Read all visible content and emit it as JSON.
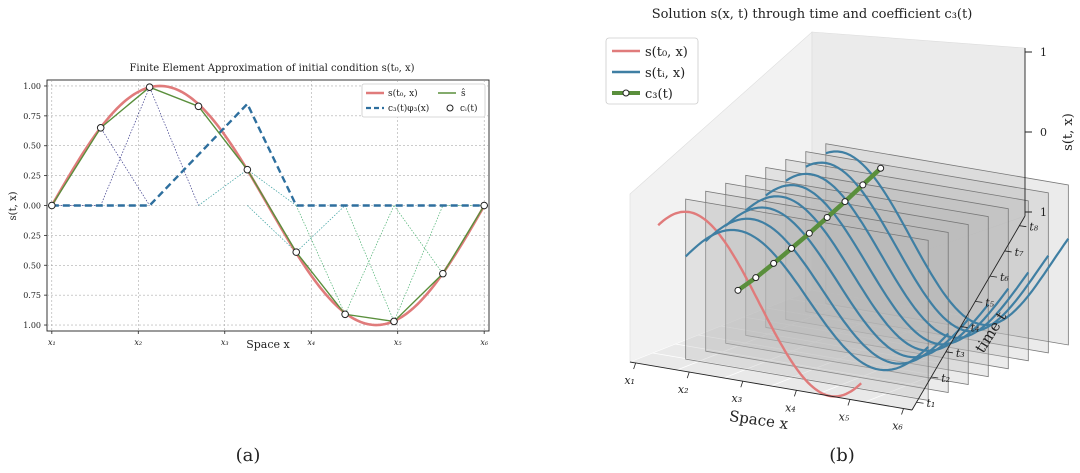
{
  "panel_a": {
    "label": "(a)",
    "title": "Finite Element Approximation of initial condition s(t₀, x)",
    "xlabel": "Space x",
    "ylabel": "s(t, x)",
    "x_tick_labels": [
      "x₁",
      "x₂",
      "x₃",
      "x₄",
      "x₅",
      "x₆"
    ],
    "y_tick_labels": [
      "1.00",
      "0.75",
      "0.50",
      "0.25",
      "0.00",
      "0.25",
      "0.50",
      "0.75",
      "1.00"
    ],
    "legend": [
      {
        "label": "s(t₀, x)",
        "color": "#e07b7b",
        "style": "solid"
      },
      {
        "label": "ŝ",
        "color": "#5a8f3c",
        "style": "solid"
      },
      {
        "label": "c₃(t)φ₃(x)",
        "color": "#2e6f9e",
        "style": "dashed"
      },
      {
        "label": "cᵢ(t)",
        "color": "#222222",
        "style": "marker"
      }
    ]
  },
  "panel_b": {
    "label": "(b)",
    "title": "Solution s(x, t) through time and coefficient c₃(t)",
    "xlabel": "Space x",
    "ylabel": "time t",
    "zlabel": "s(t, x)",
    "x_tick_labels": [
      "x₁",
      "x₂",
      "x₃",
      "x₄",
      "x₅",
      "x₆"
    ],
    "t_tick_labels": [
      "t₁",
      "t₂",
      "t₃",
      "t₄",
      "t₅",
      "t₆",
      "t₇",
      "t₈"
    ],
    "z_tick_labels": [
      "1",
      "0",
      "1"
    ],
    "legend": [
      {
        "label": "s(t₀, x)",
        "color": "#e07b7b"
      },
      {
        "label": "s(tᵢ, x)",
        "color": "#3f7fa3"
      },
      {
        "label": "c₃(t)",
        "color": "#5a8f3c"
      }
    ]
  },
  "chart_data": [
    {
      "type": "line",
      "title": "Finite Element Approximation of initial condition s(t₀, x)",
      "xlabel": "Space x",
      "ylabel": "s(t, x)",
      "ylim": [
        -1.05,
        1.05
      ],
      "xlim": [
        -0.07,
        6.35
      ],
      "grid": true,
      "legend_position": "top-right",
      "node_x": [
        0,
        0.71,
        1.42,
        2.13,
        2.84,
        3.55,
        4.26,
        4.97,
        5.68,
        6.28
      ],
      "series": [
        {
          "name": "s(t₀, x)",
          "color": "#e07b7b",
          "kind": "function",
          "function": "sin(x)"
        },
        {
          "name": "ŝ",
          "color": "#5a8f3c",
          "values": [
            0,
            0.65,
            0.99,
            0.83,
            0.3,
            -0.39,
            -0.91,
            -0.97,
            -0.57,
            0
          ]
        },
        {
          "name": "c₃(t)φ₃(x)",
          "color": "#2e6f9e",
          "x": [
            0,
            1.42,
            2.84,
            3.55,
            6.28
          ],
          "values": [
            0,
            0,
            0.85,
            0,
            0
          ]
        },
        {
          "name": "cᵢ(t)",
          "color": "#ffffff",
          "values": [
            0,
            0.65,
            0.99,
            0.83,
            0.3,
            -0.39,
            -0.91,
            -0.97,
            -0.57,
            0
          ]
        }
      ]
    },
    {
      "type": "line",
      "title": "Solution s(x, t) through time and coefficient c₃(t)",
      "xlabel": "Space x",
      "ylabel": "time t",
      "zlabel": "s(t, x)",
      "zlim": [
        -1,
        1
      ],
      "series": [
        {
          "name": "s(t₀, x)",
          "color": "#e07b7b",
          "values": "sin(x)"
        },
        {
          "name": "s(tᵢ, x)",
          "color": "#3f7fa3",
          "times": 8
        },
        {
          "name": "c₃(t)",
          "color": "#5a8f3c",
          "values": [
            0.1,
            0.17,
            0.26,
            0.36,
            0.46,
            0.57,
            0.68,
            0.8,
            0.92
          ]
        }
      ]
    }
  ]
}
